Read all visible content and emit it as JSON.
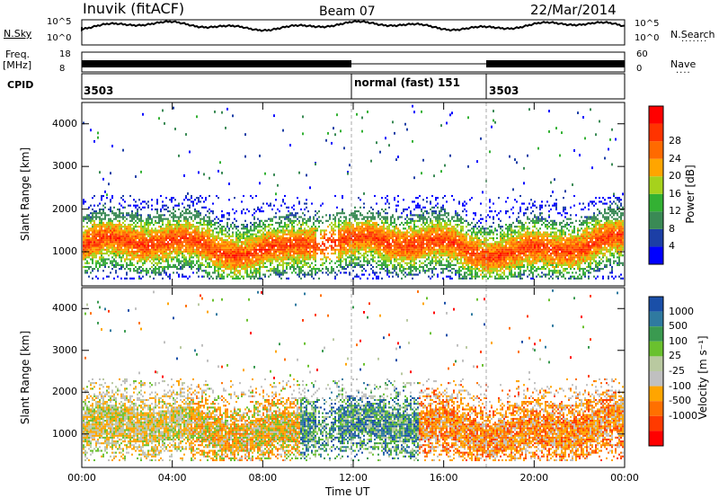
{
  "header": {
    "station": "Inuvik (fitACF)",
    "beam": "Beam 07",
    "date": "22/Mar/2014"
  },
  "noise_panel": {
    "left_label": "N.Sky",
    "right_label": "N.Search",
    "left_ticks": [
      "10^5",
      "10^0"
    ],
    "right_ticks": [
      "10^5",
      "10^0"
    ]
  },
  "freq_panel": {
    "left_label_1": "Freq.",
    "left_label_2": "[MHz]",
    "right_label": "Nave",
    "left_ticks": [
      "18",
      "8"
    ],
    "right_ticks": [
      "60",
      "0"
    ]
  },
  "cpid": {
    "label": "CPID",
    "segments": [
      "3503",
      "normal (fast) 151",
      "3503"
    ]
  },
  "colors": {
    "power_scale": [
      "#0000ff",
      "#1c3fa6",
      "#3a8a55",
      "#33b133",
      "#a6d21c",
      "#ffa500",
      "#ff6a00",
      "#ff3300",
      "#ff0000"
    ],
    "velocity_scale": [
      "#1a4fa8",
      "#2f7aa0",
      "#3a9a50",
      "#6ac12e",
      "#b9c9a0",
      "#c0c0c0",
      "#ffa500",
      "#ff7000",
      "#ff3a00",
      "#ff0000"
    ]
  },
  "chart_data": [
    {
      "type": "heatmap",
      "title": "Power",
      "xlabel": "Time UT",
      "ylabel": "Slant Range [km]",
      "x_ticks": [
        "00:00",
        "04:00",
        "08:00",
        "12:00",
        "16:00",
        "20:00",
        "00:00"
      ],
      "y_ticks": [
        1000,
        2000,
        3000,
        4000
      ],
      "ylim": [
        200,
        4500
      ],
      "colorbar": {
        "label": "Power [dB]",
        "ticks": [
          4,
          8,
          12,
          16,
          20,
          24,
          28
        ]
      }
    },
    {
      "type": "heatmap",
      "title": "Velocity",
      "xlabel": "Time UT",
      "ylabel": "Slant Range [km]",
      "x_ticks": [
        "00:00",
        "04:00",
        "08:00",
        "12:00",
        "16:00",
        "20:00",
        "00:00"
      ],
      "y_ticks": [
        1000,
        2000,
        3000,
        4000
      ],
      "ylim": [
        200,
        4500
      ],
      "colorbar": {
        "label": "Velocity [m s⁻¹]",
        "ticks": [
          1000,
          500,
          100,
          25,
          -25,
          -100,
          -500,
          -1000
        ]
      }
    }
  ]
}
